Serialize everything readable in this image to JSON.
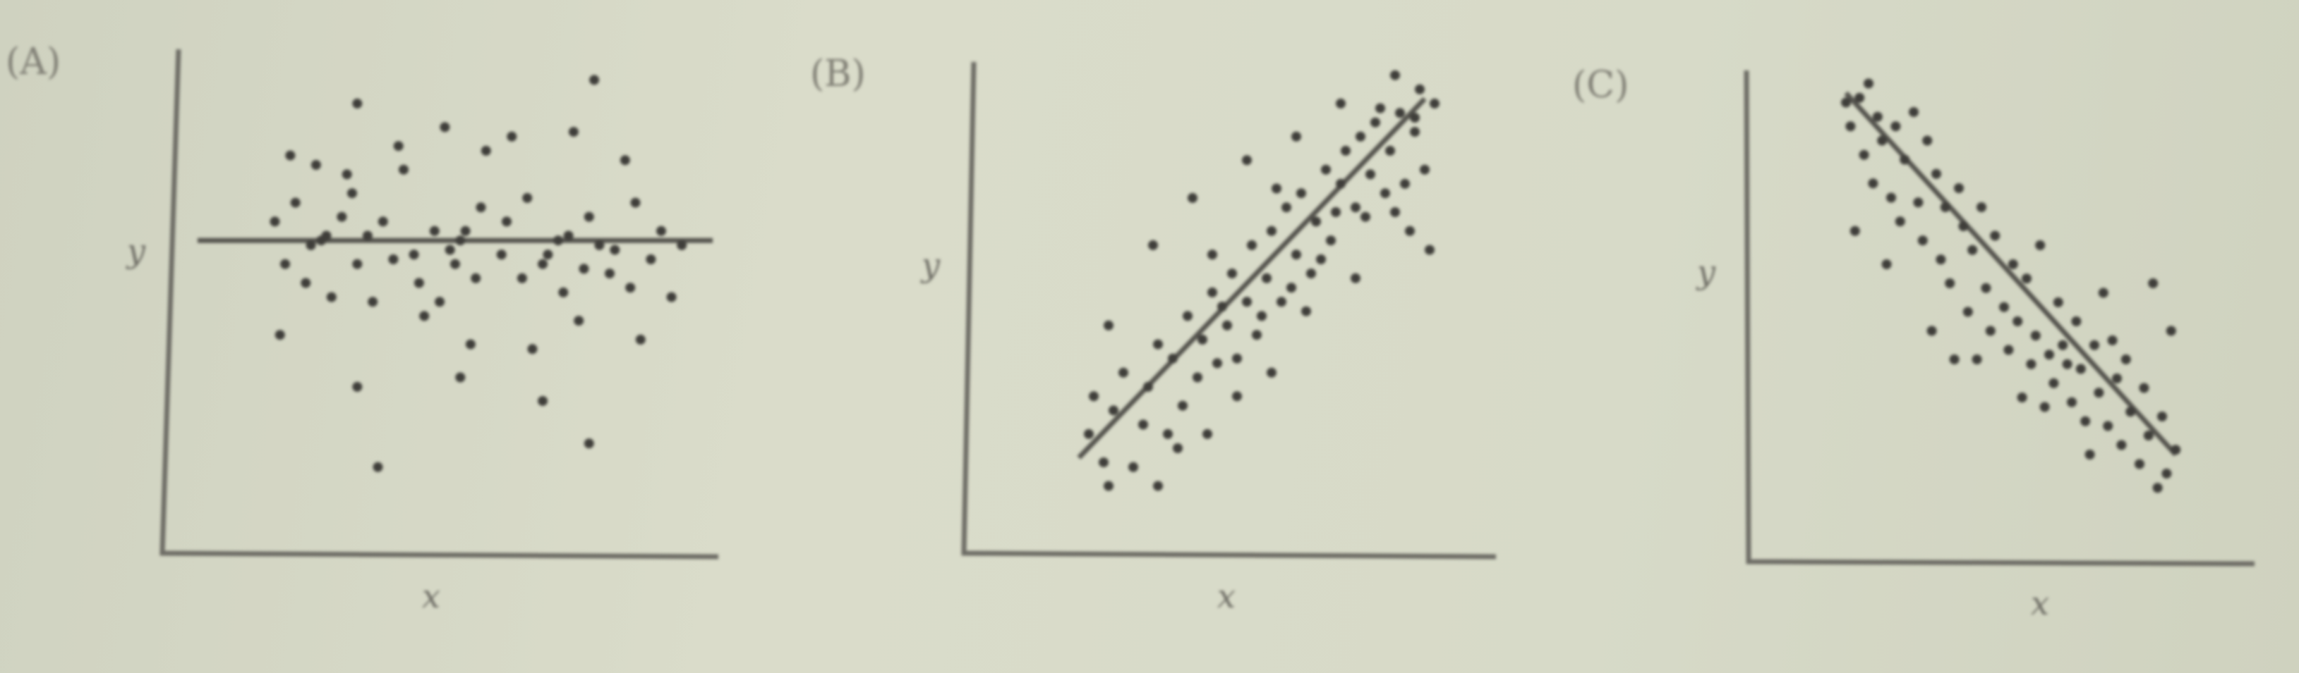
{
  "chart_data": [
    {
      "type": "scatter",
      "panel_label": "(A)",
      "xlabel": "x",
      "ylabel": "y",
      "xlim": [
        0,
        10
      ],
      "ylim": [
        0,
        10
      ],
      "trend_line": [
        [
          0,
          6.4
        ],
        [
          10,
          6.4
        ]
      ],
      "points": [
        [
          1.5,
          6.8
        ],
        [
          1.9,
          7.2
        ],
        [
          2.2,
          6.3
        ],
        [
          2.5,
          6.5
        ],
        [
          2.8,
          6.9
        ],
        [
          3.0,
          7.4
        ],
        [
          3.3,
          6.5
        ],
        [
          3.6,
          6.8
        ],
        [
          4.0,
          7.9
        ],
        [
          4.2,
          6.1
        ],
        [
          4.6,
          6.6
        ],
        [
          5.1,
          6.4
        ],
        [
          5.5,
          7.1
        ],
        [
          6.0,
          6.8
        ],
        [
          6.4,
          7.3
        ],
        [
          6.8,
          6.1
        ],
        [
          7.2,
          6.5
        ],
        [
          7.6,
          6.9
        ],
        [
          8.1,
          6.2
        ],
        [
          8.5,
          7.2
        ],
        [
          9.0,
          6.6
        ],
        [
          9.4,
          6.3
        ],
        [
          1.7,
          5.9
        ],
        [
          2.1,
          5.5
        ],
        [
          2.6,
          5.2
        ],
        [
          3.1,
          5.9
        ],
        [
          3.4,
          5.1
        ],
        [
          3.8,
          6.0
        ],
        [
          4.3,
          5.5
        ],
        [
          4.7,
          5.1
        ],
        [
          5.0,
          5.9
        ],
        [
          5.4,
          5.6
        ],
        [
          5.9,
          6.1
        ],
        [
          6.3,
          5.6
        ],
        [
          6.7,
          5.9
        ],
        [
          7.1,
          5.3
        ],
        [
          7.5,
          5.8
        ],
        [
          8.0,
          5.7
        ],
        [
          8.4,
          5.4
        ],
        [
          8.8,
          6.0
        ],
        [
          9.2,
          5.2
        ],
        [
          1.8,
          8.2
        ],
        [
          2.3,
          8.0
        ],
        [
          2.9,
          7.8
        ],
        [
          3.9,
          8.4
        ],
        [
          4.8,
          8.8
        ],
        [
          5.6,
          8.3
        ],
        [
          6.1,
          8.6
        ],
        [
          7.3,
          8.7
        ],
        [
          8.3,
          8.1
        ],
        [
          1.6,
          4.4
        ],
        [
          4.4,
          4.8
        ],
        [
          7.4,
          4.7
        ],
        [
          8.6,
          4.3
        ],
        [
          5.3,
          4.2
        ],
        [
          6.5,
          4.1
        ],
        [
          3.1,
          3.3
        ],
        [
          5.1,
          3.5
        ],
        [
          6.7,
          3.0
        ],
        [
          3.1,
          9.3
        ],
        [
          7.7,
          9.8
        ],
        [
          3.5,
          1.6
        ],
        [
          7.6,
          2.1
        ],
        [
          2.4,
          6.4
        ],
        [
          4.9,
          6.2
        ],
        [
          5.2,
          6.6
        ],
        [
          7.0,
          6.4
        ],
        [
          7.8,
          6.3
        ]
      ]
    },
    {
      "type": "scatter",
      "panel_label": "(B)",
      "xlabel": "x",
      "ylabel": "y",
      "xlim": [
        0,
        10
      ],
      "ylim": [
        0,
        10
      ],
      "trend_line": [
        [
          1.7,
          1.8
        ],
        [
          8.7,
          9.4
        ]
      ],
      "points": [
        [
          1.9,
          2.3
        ],
        [
          2.2,
          1.7
        ],
        [
          2.4,
          2.8
        ],
        [
          2.6,
          3.6
        ],
        [
          2.8,
          1.6
        ],
        [
          3.0,
          2.5
        ],
        [
          3.1,
          3.3
        ],
        [
          3.3,
          4.2
        ],
        [
          3.5,
          2.3
        ],
        [
          3.6,
          3.9
        ],
        [
          3.8,
          2.9
        ],
        [
          3.9,
          4.8
        ],
        [
          4.1,
          3.5
        ],
        [
          4.2,
          4.3
        ],
        [
          4.4,
          5.3
        ],
        [
          4.5,
          3.8
        ],
        [
          4.7,
          4.6
        ],
        [
          4.8,
          5.7
        ],
        [
          4.9,
          3.9
        ],
        [
          5.1,
          5.1
        ],
        [
          5.2,
          6.3
        ],
        [
          5.3,
          4.4
        ],
        [
          5.5,
          5.6
        ],
        [
          5.6,
          6.6
        ],
        [
          5.8,
          5.1
        ],
        [
          5.9,
          7.1
        ],
        [
          6.1,
          6.1
        ],
        [
          6.2,
          7.4
        ],
        [
          6.4,
          5.7
        ],
        [
          6.5,
          6.8
        ],
        [
          6.7,
          7.9
        ],
        [
          6.8,
          6.4
        ],
        [
          7.0,
          7.6
        ],
        [
          7.1,
          8.3
        ],
        [
          7.3,
          7.1
        ],
        [
          7.4,
          8.6
        ],
        [
          7.6,
          7.8
        ],
        [
          7.7,
          8.9
        ],
        [
          7.9,
          7.4
        ],
        [
          8.0,
          8.3
        ],
        [
          8.2,
          9.1
        ],
        [
          8.3,
          7.6
        ],
        [
          8.5,
          8.7
        ],
        [
          8.6,
          9.6
        ],
        [
          8.7,
          7.9
        ],
        [
          8.9,
          9.3
        ],
        [
          8.8,
          6.2
        ],
        [
          8.4,
          6.6
        ],
        [
          7.3,
          5.6
        ],
        [
          6.3,
          4.9
        ],
        [
          5.6,
          3.6
        ],
        [
          4.9,
          3.1
        ],
        [
          4.3,
          2.3
        ],
        [
          3.3,
          1.2
        ],
        [
          2.3,
          1.2
        ],
        [
          3.2,
          6.3
        ],
        [
          4.0,
          7.3
        ],
        [
          5.1,
          8.1
        ],
        [
          6.1,
          8.6
        ],
        [
          7.0,
          9.3
        ],
        [
          8.1,
          9.9
        ],
        [
          8.5,
          9.0
        ],
        [
          2.3,
          4.6
        ],
        [
          2.0,
          3.1
        ],
        [
          3.7,
          2.0
        ],
        [
          4.6,
          5.0
        ],
        [
          5.4,
          4.8
        ],
        [
          6.0,
          5.4
        ],
        [
          6.6,
          6.0
        ],
        [
          7.5,
          6.9
        ],
        [
          8.1,
          7.0
        ],
        [
          6.9,
          7.0
        ],
        [
          5.7,
          7.5
        ],
        [
          4.4,
          6.1
        ],
        [
          7.8,
          9.2
        ]
      ]
    },
    {
      "type": "scatter",
      "panel_label": "(C)",
      "xlabel": "x",
      "ylabel": "y",
      "xlim": [
        0,
        10
      ],
      "ylim": [
        0,
        10
      ],
      "trend_line": [
        [
          1.5,
          9.6
        ],
        [
          8.8,
          2.0
        ]
      ],
      "points": [
        [
          1.5,
          9.4
        ],
        [
          1.6,
          8.9
        ],
        [
          1.8,
          9.5
        ],
        [
          1.9,
          8.3
        ],
        [
          2.0,
          9.8
        ],
        [
          2.1,
          7.7
        ],
        [
          2.2,
          9.1
        ],
        [
          2.3,
          8.6
        ],
        [
          2.5,
          7.4
        ],
        [
          2.6,
          8.9
        ],
        [
          2.7,
          6.9
        ],
        [
          2.8,
          8.2
        ],
        [
          3.0,
          9.2
        ],
        [
          3.1,
          7.3
        ],
        [
          3.2,
          6.5
        ],
        [
          3.3,
          8.6
        ],
        [
          3.5,
          7.9
        ],
        [
          3.6,
          6.1
        ],
        [
          3.7,
          7.2
        ],
        [
          3.8,
          5.6
        ],
        [
          4.0,
          7.6
        ],
        [
          4.1,
          6.8
        ],
        [
          4.2,
          5.0
        ],
        [
          4.3,
          6.3
        ],
        [
          4.5,
          7.2
        ],
        [
          4.6,
          5.5
        ],
        [
          4.7,
          4.6
        ],
        [
          4.8,
          6.6
        ],
        [
          5.0,
          5.1
        ],
        [
          5.1,
          4.2
        ],
        [
          5.2,
          6.0
        ],
        [
          5.3,
          4.8
        ],
        [
          5.5,
          5.7
        ],
        [
          5.6,
          3.9
        ],
        [
          5.7,
          4.5
        ],
        [
          5.8,
          6.4
        ],
        [
          6.0,
          4.1
        ],
        [
          6.1,
          3.5
        ],
        [
          6.2,
          5.2
        ],
        [
          6.3,
          4.3
        ],
        [
          6.5,
          3.1
        ],
        [
          6.6,
          4.8
        ],
        [
          6.7,
          3.8
        ],
        [
          6.8,
          2.7
        ],
        [
          7.0,
          4.3
        ],
        [
          7.1,
          3.3
        ],
        [
          7.2,
          5.4
        ],
        [
          7.3,
          2.6
        ],
        [
          7.5,
          3.6
        ],
        [
          7.6,
          2.2
        ],
        [
          7.7,
          4.0
        ],
        [
          7.8,
          2.9
        ],
        [
          8.0,
          1.8
        ],
        [
          8.1,
          3.4
        ],
        [
          8.2,
          2.4
        ],
        [
          8.4,
          1.3
        ],
        [
          8.5,
          2.8
        ],
        [
          8.6,
          1.6
        ],
        [
          8.7,
          4.6
        ],
        [
          8.8,
          2.1
        ],
        [
          1.7,
          6.7
        ],
        [
          2.4,
          6.0
        ],
        [
          3.4,
          4.6
        ],
        [
          4.4,
          4.0
        ],
        [
          5.4,
          3.2
        ],
        [
          6.4,
          3.9
        ],
        [
          7.4,
          4.4
        ],
        [
          8.3,
          5.6
        ],
        [
          3.9,
          4.0
        ],
        [
          5.9,
          3.0
        ],
        [
          6.9,
          2.0
        ]
      ]
    }
  ]
}
